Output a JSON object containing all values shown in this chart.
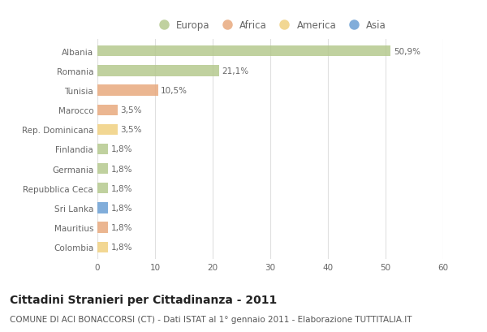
{
  "countries": [
    "Albania",
    "Romania",
    "Tunisia",
    "Marocco",
    "Rep. Dominicana",
    "Finlandia",
    "Germania",
    "Repubblica Ceca",
    "Sri Lanka",
    "Mauritius",
    "Colombia"
  ],
  "values": [
    50.9,
    21.1,
    10.5,
    3.5,
    3.5,
    1.8,
    1.8,
    1.8,
    1.8,
    1.8,
    1.8
  ],
  "labels": [
    "50,9%",
    "21,1%",
    "10,5%",
    "3,5%",
    "3,5%",
    "1,8%",
    "1,8%",
    "1,8%",
    "1,8%",
    "1,8%",
    "1,8%"
  ],
  "categories": [
    "Europa",
    "Africa",
    "America",
    "Asia"
  ],
  "continent": [
    "Europa",
    "Europa",
    "Africa",
    "Africa",
    "America",
    "Europa",
    "Europa",
    "Europa",
    "Asia",
    "Africa",
    "America"
  ],
  "colors": {
    "Europa": "#b5c98e",
    "Africa": "#e8a97e",
    "America": "#f0d080",
    "Asia": "#6b9fd4"
  },
  "xlim": [
    0,
    60
  ],
  "xticks": [
    0,
    10,
    20,
    30,
    40,
    50,
    60
  ],
  "background_color": "#ffffff",
  "grid_color": "#e0e0e0",
  "title": "Cittadini Stranieri per Cittadinanza - 2011",
  "subtitle": "COMUNE DI ACI BONACCORSI (CT) - Dati ISTAT al 1° gennaio 2011 - Elaborazione TUTTITALIA.IT",
  "title_fontsize": 10,
  "subtitle_fontsize": 7.5,
  "bar_height": 0.55,
  "label_fontsize": 7.5,
  "tick_fontsize": 7.5,
  "legend_fontsize": 8.5
}
